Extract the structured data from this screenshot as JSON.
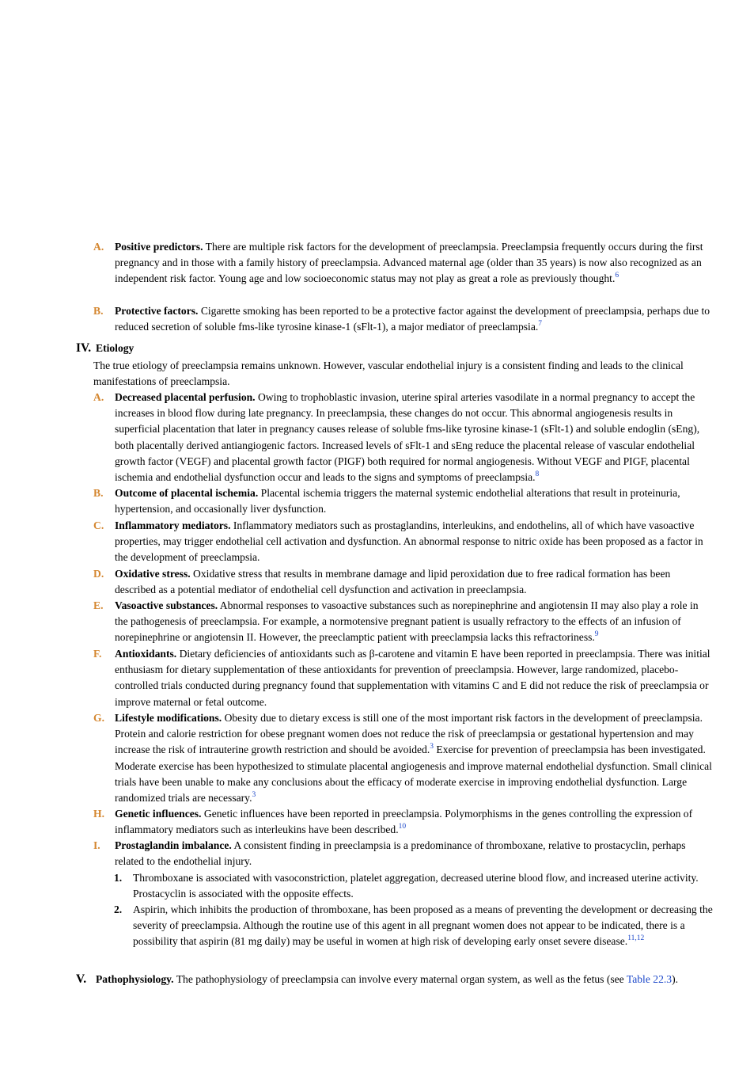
{
  "colors": {
    "letter": "#d4862f",
    "link": "#1a46c9",
    "text": "#000000"
  },
  "items": {
    "A1": {
      "letter": "A.",
      "title": "Positive predictors.",
      "text": " There are multiple risk factors for the development of preeclampsia. Preeclampsia frequently occurs during the first pregnancy and in those with a family history of preeclampsia. Advanced maternal age (older than 35 years) is now also recognized as an independent risk factor. Young age and low socioeconomic status may not play as great a role as previously thought.",
      "ref": "6"
    },
    "B1": {
      "letter": "B.",
      "title": "Protective factors.",
      "text": " Cigarette smoking has been reported to be a protective factor against the development of preeclampsia, perhaps due to reduced secretion of soluble fms-like tyrosine kinase-1 (sFlt-1), a major mediator of preeclampsia.",
      "ref": "7"
    }
  },
  "section4": {
    "numeral": "IV.",
    "heading": "Etiology",
    "intro": "The true etiology of preeclampsia remains unknown. However, vascular endothelial injury is a consistent finding and leads to the clinical manifestations of preeclampsia.",
    "A": {
      "letter": "A.",
      "title": "Decreased placental perfusion.",
      "text": " Owing to trophoblastic invasion, uterine spiral arteries vasodilate in a normal pregnancy to accept the increases in blood flow during late pregnancy. In preeclampsia, these changes do not occur. This abnormal angiogenesis results in superficial placentation that later in pregnancy causes release of soluble fms-like tyrosine kinase-1 (sFlt-1) and soluble endoglin (sEng), both placentally derived antiangiogenic factors. Increased levels of sFlt-1 and sEng reduce the placental release of vascular endothelial growth factor (VEGF) and placental growth factor (PIGF) both required for normal angiogenesis. Without VEGF and PIGF, placental ischemia and endothelial dysfunction occur and leads to the signs and symptoms of preeclampsia.",
      "ref": "8"
    },
    "B": {
      "letter": "B.",
      "title": "Outcome of placental ischemia.",
      "text": " Placental ischemia triggers the maternal systemic endothelial alterations that result in proteinuria, hypertension, and occasionally liver dysfunction."
    },
    "C": {
      "letter": "C.",
      "title": "Inflammatory mediators.",
      "text": " Inflammatory mediators such as prostaglandins, interleukins, and endothelins, all of which have vasoactive properties, may trigger endothelial cell activation and dysfunction. An abnormal response to nitric oxide has been proposed as a factor in the development of preeclampsia."
    },
    "D": {
      "letter": "D.",
      "title": "Oxidative stress.",
      "text": " Oxidative stress that results in membrane damage and lipid peroxidation due to free radical formation has been described as a potential mediator of endothelial cell dysfunction and activation in preeclampsia."
    },
    "E": {
      "letter": "E.",
      "title": "Vasoactive substances.",
      "text": " Abnormal responses to vasoactive substances such as norepinephrine and angiotensin II may also play a role in the pathogenesis of preeclampsia. For example, a normotensive pregnant patient is usually refractory to the effects of an infusion of norepinephrine or angiotensin II. However, the preeclamptic patient with preeclampsia lacks this refractoriness.",
      "ref": "9"
    },
    "F": {
      "letter": "F.",
      "title": "Antioxidants.",
      "text": " Dietary deficiencies of antioxidants such as β-carotene and vitamin E have been reported in preeclampsia. There was initial enthusiasm for dietary supplementation of these antioxidants for prevention of preeclampsia. However, large randomized, placebo-controlled trials conducted during pregnancy found that supplementation with vitamins C and E did not reduce the risk of preeclampsia or improve maternal or fetal outcome."
    },
    "G": {
      "letter": "G.",
      "title": "Lifestyle modifications.",
      "text1": " Obesity due to dietary excess is still one of the most important risk factors in the development of preeclampsia. Protein and calorie restriction for obese pregnant women does not reduce the risk of preeclampsia or gestational hypertension and may increase the risk of intrauterine growth restriction and should be avoided.",
      "ref1": "3",
      "text2": " Exercise for prevention of preeclampsia has been investigated. Moderate exercise has been hypothesized to stimulate placental angiogenesis and improve maternal endothelial dysfunction. Small clinical trials have been unable to make any conclusions about the efficacy of moderate exercise in improving endothelial dysfunction. Large randomized trials are necessary.",
      "ref2": "3"
    },
    "H": {
      "letter": "H.",
      "title": "Genetic influences.",
      "text": " Genetic influences have been reported in preeclampsia. Polymorphisms in the genes controlling the expression of inflammatory mediators such as interleukins have been described.",
      "ref": "10"
    },
    "I": {
      "letter": "I.",
      "title": "Prostaglandin imbalance.",
      "text": " A consistent finding in preeclampsia is a predominance of thromboxane, relative to prostacyclin, perhaps related to the endothelial injury.",
      "n1": {
        "num": "1.",
        "text": "Thromboxane is associated with vasoconstriction, platelet aggregation, decreased uterine blood flow, and increased uterine activity. Prostacyclin is associated with the opposite effects."
      },
      "n2": {
        "num": "2.",
        "text": "Aspirin, which inhibits the production of thromboxane, has been proposed as a means of preventing the development or decreasing the severity of preeclampsia. Although the routine use of this agent in all pregnant women does not appear to be indicated, there is a possibility that aspirin (81 mg daily) may be useful in women at high risk of developing early onset severe disease.",
        "ref": "11,12"
      }
    }
  },
  "section5": {
    "numeral": "V.",
    "heading": "Pathophysiology.",
    "text": " The pathophysiology of preeclampsia can involve every maternal organ system, as well as the fetus (see ",
    "link": "Table 22.3",
    "tail": ")."
  }
}
